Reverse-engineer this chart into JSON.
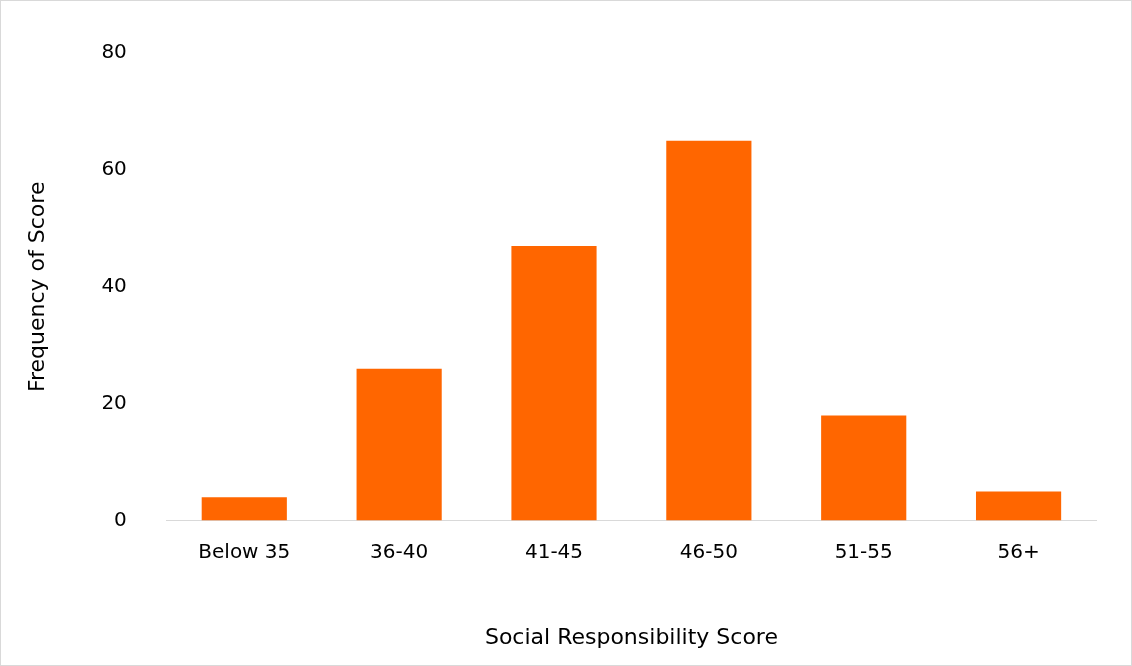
{
  "chart_data": {
    "type": "bar",
    "xlabel": "Social Responsibility Score",
    "ylabel": "Frequency of Score",
    "categories": [
      "Below 35",
      "36-40",
      "41-45",
      "46-50",
      "51-55",
      "56+"
    ],
    "values": [
      4,
      26,
      47,
      65,
      18,
      5
    ],
    "color": "#ff6600",
    "ylim": [
      0,
      80
    ],
    "yticks": [
      0,
      20,
      40,
      60,
      80
    ],
    "grid": false,
    "legend": false
  }
}
